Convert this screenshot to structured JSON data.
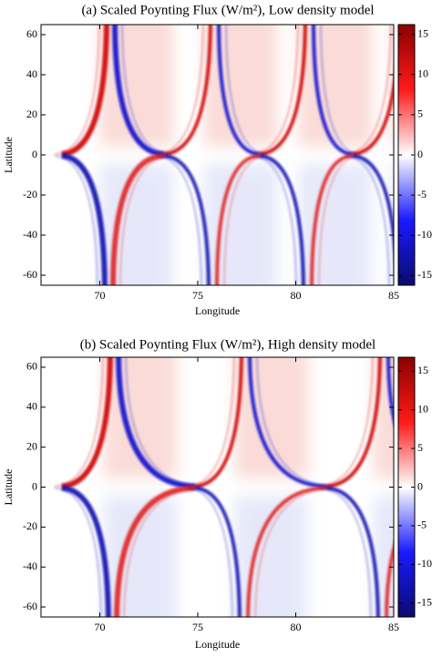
{
  "chart_data": [
    {
      "type": "heatmap",
      "title": "(a) Scaled Poynting Flux (W/m²), Low density model",
      "x_label": "Longitude",
      "y_label": "Latitude",
      "xlim": [
        67,
        85
      ],
      "ylim": [
        -65,
        65
      ],
      "xticks": [
        70,
        75,
        80,
        85
      ],
      "yticks": [
        -60,
        -40,
        -20,
        0,
        20,
        40,
        60
      ],
      "colorbar": {
        "lim": [
          -16.2,
          16.2
        ],
        "ticks": [
          -15,
          -10,
          -5,
          0,
          5,
          10,
          15
        ]
      },
      "colormap": [
        "#0a0a6e",
        "#ffffff",
        "#8b0000"
      ]
    },
    {
      "type": "heatmap",
      "title": "(b) Scaled Poynting Flux (W/m²), High density model",
      "x_label": "Longitude",
      "y_label": "Latitude",
      "xlim": [
        67,
        85
      ],
      "ylim": [
        -65,
        65
      ],
      "xticks": [
        70,
        75,
        80,
        85
      ],
      "yticks": [
        -60,
        -40,
        -20,
        0,
        20,
        40,
        60
      ],
      "colorbar": {
        "lim": [
          -16.8,
          16.8
        ],
        "ticks": [
          -15,
          -10,
          -5,
          0,
          5,
          10,
          15
        ]
      },
      "colormap": [
        "#0a0a6e",
        "#ffffff",
        "#8b0000"
      ]
    }
  ]
}
